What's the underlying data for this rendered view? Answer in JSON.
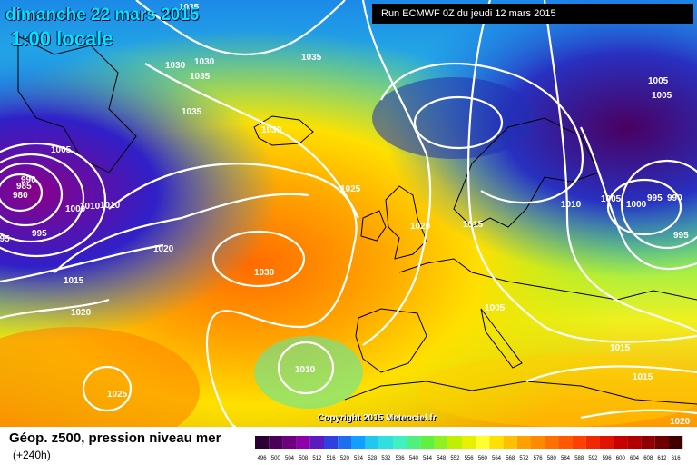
{
  "header": {
    "date": "dimanche 22 mars 2015",
    "time": "1:00 locale",
    "run": "Run ECMWF 0Z du jeudi 12 mars 2015"
  },
  "footer": {
    "copyright": "Copyright 2015 Meteociel.fr",
    "legend_title": "Géop. z500, pression niveau mer",
    "legend_sub": "(+240h)"
  },
  "scale": {
    "values": [
      "496",
      "500",
      "504",
      "508",
      "512",
      "516",
      "520",
      "524",
      "528",
      "532",
      "536",
      "540",
      "544",
      "548",
      "552",
      "556",
      "560",
      "564",
      "568",
      "572",
      "576",
      "580",
      "584",
      "588",
      "592",
      "596",
      "600",
      "604",
      "608",
      "612",
      "616"
    ],
    "colors": [
      "#2a0033",
      "#4a005a",
      "#6e0080",
      "#8e00a8",
      "#5a1cc0",
      "#3040e0",
      "#1c70f0",
      "#10a0ff",
      "#20c8f0",
      "#30e0e0",
      "#40f0c0",
      "#50f080",
      "#60f040",
      "#90f020",
      "#c0f000",
      "#e8f000",
      "#ffff30",
      "#ffe000",
      "#ffc000",
      "#ffa000",
      "#ff8a00",
      "#ff7000",
      "#ff5800",
      "#ff4000",
      "#f02800",
      "#e01400",
      "#c80000",
      "#b00000",
      "#900000",
      "#700000",
      "#400000"
    ]
  },
  "isobars": [
    "1035",
    "1030",
    "1030",
    "1035",
    "1035",
    "1035",
    "1030",
    "1005",
    "1005",
    "1005",
    "990",
    "985",
    "980",
    "1000",
    "1010",
    "1010",
    "995",
    "995",
    "1020",
    "1025",
    "1020",
    "1015",
    "1010",
    "1005",
    "995",
    "990",
    "1000",
    "995",
    "1030",
    "1015",
    "1020",
    "1005",
    "1015",
    "1010",
    "1015",
    "1025",
    "1020"
  ]
}
